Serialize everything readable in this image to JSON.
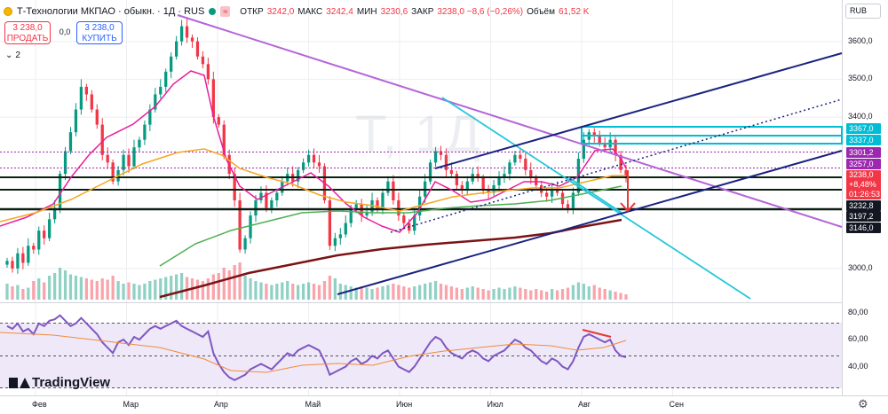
{
  "header": {
    "symbol": "Т-Технологии МКПАО · обыкн. · 1Д · RUS",
    "wave_badge": "≈",
    "ohlc": [
      {
        "k": "ОТКР",
        "v": "3242,0"
      },
      {
        "k": "МАКС",
        "v": "3242,4"
      },
      {
        "k": "МИН",
        "v": "3230,6"
      },
      {
        "k": "ЗАКР",
        "v": "3238,0  −8,6 (−0,26%)"
      },
      {
        "k": "Объём",
        "v": "61,52 K"
      }
    ]
  },
  "trade": {
    "sell_price": "3 238,0",
    "sell_label": "ПРОДАТЬ",
    "spread": "0,0",
    "buy_price": "3 238,0",
    "buy_label": "КУПИТЬ"
  },
  "indicators_toggle": {
    "count": "2"
  },
  "watermark": "T, 1Д",
  "currency": "RUB",
  "price_ticks": [
    {
      "label": "3600,0",
      "v": 3600
    },
    {
      "label": "3500,0",
      "v": 3500
    },
    {
      "label": "3400,0",
      "v": 3400
    },
    {
      "label": "3000,0",
      "v": 3000
    }
  ],
  "price_labels": [
    {
      "label": "3367,0",
      "v": 3367,
      "color": "#00bcd4"
    },
    {
      "label": "3337,0",
      "v": 3337,
      "color": "#00bcd4"
    },
    {
      "label": "3301,2",
      "v": 3301,
      "color": "#9c27b0"
    },
    {
      "label": "3257,0",
      "v": 3257,
      "color": "#9c27b0"
    },
    {
      "label": "3232,8",
      "v": 3232,
      "color": "#131722"
    },
    {
      "label": "3197,2",
      "v": 3197,
      "color": "#131722"
    },
    {
      "label": "3146,0",
      "v": 3146,
      "color": "#131722"
    }
  ],
  "current_price": {
    "price": "3238,0",
    "change": "+8,48%",
    "countdown": "01:26:53",
    "color": "#f23645"
  },
  "rsi_ticks": [
    {
      "label": "80,00",
      "v": 80
    },
    {
      "label": "60,00",
      "v": 60
    },
    {
      "label": "40,00",
      "v": 40
    }
  ],
  "x_labels": [
    "Фев",
    "Мар",
    "Апр",
    "Май",
    "Июн",
    "Июл",
    "Авг",
    "Сен"
  ],
  "logo_text": "TradingView",
  "chart_data": {
    "type": "candlestick",
    "ylim": [
      2920,
      3700
    ],
    "rsi_ylim": [
      20,
      85
    ],
    "x": [
      "Фев",
      "",
      "",
      "",
      "",
      "",
      "",
      "",
      "",
      "",
      "",
      "",
      "",
      "",
      "",
      "",
      "",
      "",
      "",
      "Мар",
      "",
      "",
      "",
      "",
      "",
      "",
      "",
      "",
      "",
      "",
      "",
      "",
      "",
      "",
      "",
      "",
      "",
      "",
      "",
      "",
      "Апр",
      "",
      "",
      "",
      "",
      "",
      "",
      "",
      "",
      "",
      "",
      "",
      "",
      "",
      "",
      "",
      "",
      "",
      "",
      "",
      "",
      "Май",
      "",
      "",
      "",
      "",
      "",
      "",
      "",
      "",
      "",
      "",
      "",
      "",
      "",
      "",
      "",
      "",
      "",
      "",
      "",
      "Июн",
      "",
      "",
      "",
      "",
      "",
      "",
      "",
      "",
      "",
      "",
      "",
      "",
      "",
      "",
      "",
      "",
      "",
      "",
      "",
      "Июл",
      "",
      "",
      "",
      "",
      "",
      "",
      "",
      "",
      "",
      "",
      "",
      "",
      "",
      "",
      "",
      ""
    ],
    "close": [
      3020,
      3000,
      3040,
      3015,
      3060,
      3050,
      3100,
      3080,
      3130,
      3160,
      3250,
      3310,
      3360,
      3420,
      3480,
      3460,
      3420,
      3380,
      3300,
      3280,
      3230,
      3260,
      3300,
      3270,
      3320,
      3340,
      3380,
      3420,
      3460,
      3480,
      3520,
      3560,
      3600,
      3640,
      3610,
      3600,
      3560,
      3540,
      3500,
      3400,
      3380,
      3300,
      3250,
      3180,
      3050,
      3080,
      3140,
      3180,
      3200,
      3160,
      3180,
      3200,
      3230,
      3250,
      3230,
      3260,
      3280,
      3300,
      3280,
      3270,
      3180,
      3060,
      3080,
      3090,
      3120,
      3160,
      3170,
      3140,
      3150,
      3180,
      3160,
      3200,
      3230,
      3180,
      3140,
      3120,
      3100,
      3140,
      3190,
      3230,
      3280,
      3310,
      3300,
      3260,
      3250,
      3220,
      3210,
      3230,
      3250,
      3240,
      3210,
      3200,
      3220,
      3240,
      3250,
      3280,
      3300,
      3290,
      3260,
      3240,
      3220,
      3200,
      3190,
      3210,
      3200,
      3170,
      3160,
      3200,
      3290,
      3340,
      3360,
      3350,
      3330,
      3320,
      3340,
      3300,
      3260,
      3238
    ],
    "volume": [
      60,
      50,
      55,
      40,
      45,
      70,
      80,
      65,
      90,
      100,
      120,
      110,
      95,
      90,
      85,
      80,
      75,
      70,
      80,
      75,
      90,
      70,
      60,
      65,
      60,
      55,
      60,
      70,
      75,
      80,
      85,
      90,
      95,
      100,
      85,
      80,
      75,
      70,
      80,
      95,
      100,
      120,
      110,
      130,
      140,
      90,
      80,
      70,
      65,
      60,
      55,
      60,
      65,
      70,
      60,
      55,
      60,
      65,
      60,
      55,
      70,
      90,
      80,
      60,
      55,
      50,
      45,
      50,
      45,
      40,
      45,
      50,
      55,
      60,
      55,
      50,
      45,
      50,
      55,
      60,
      65,
      70,
      60,
      55,
      50,
      45,
      40,
      45,
      50,
      45,
      40,
      35,
      40,
      45,
      40,
      45,
      50,
      45,
      40,
      35,
      40,
      35,
      30,
      40,
      35,
      40,
      45,
      55,
      65,
      60,
      50,
      55,
      45,
      40,
      35,
      30,
      25,
      20
    ],
    "rsi": [
      70,
      68,
      72,
      66,
      68,
      64,
      72,
      70,
      74,
      75,
      78,
      74,
      70,
      72,
      76,
      72,
      68,
      64,
      58,
      54,
      50,
      58,
      60,
      56,
      62,
      60,
      64,
      68,
      70,
      68,
      70,
      72,
      74,
      70,
      68,
      66,
      64,
      62,
      66,
      50,
      42,
      36,
      32,
      30,
      32,
      34,
      38,
      40,
      42,
      40,
      38,
      42,
      46,
      50,
      48,
      52,
      54,
      56,
      54,
      52,
      44,
      34,
      36,
      38,
      40,
      44,
      46,
      42,
      44,
      48,
      46,
      50,
      52,
      46,
      40,
      38,
      36,
      40,
      46,
      52,
      58,
      62,
      60,
      54,
      50,
      48,
      46,
      50,
      52,
      50,
      46,
      44,
      48,
      50,
      52,
      56,
      60,
      58,
      54,
      52,
      48,
      44,
      42,
      46,
      44,
      40,
      38,
      44,
      54,
      62,
      64,
      62,
      60,
      58,
      60,
      52,
      48,
      47
    ]
  }
}
